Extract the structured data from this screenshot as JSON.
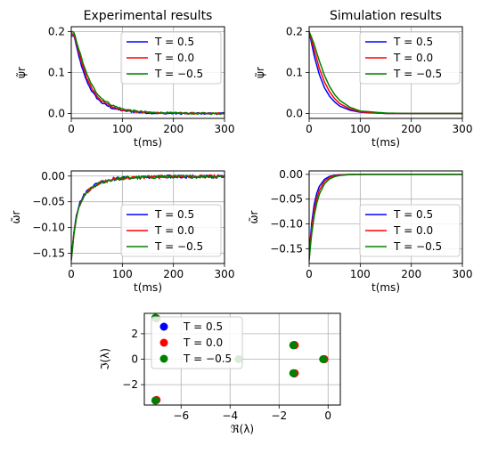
{
  "chart_data": [
    {
      "type": "line",
      "panel": "exp-psi",
      "title": "Experimental results",
      "xlabel": "t(ms)",
      "ylabel": "ψ̃r",
      "xlim": [
        0,
        300
      ],
      "ylim": [
        -0.012,
        0.212
      ],
      "xticks": [
        "0",
        "100",
        "200",
        "300"
      ],
      "yticks": [
        "0.0",
        "0.1",
        "0.2"
      ],
      "xtick_values": [
        0,
        100,
        200,
        300
      ],
      "ytick_values": [
        0.0,
        0.1,
        0.2
      ],
      "grid": true,
      "legend_position": "top-right",
      "series": [
        {
          "name": "T = 0.5",
          "color": "#0000ff",
          "noise": 0.002,
          "x": [
            0,
            5,
            10,
            20,
            30,
            40,
            50,
            60,
            80,
            100,
            130,
            160,
            200,
            250,
            300
          ],
          "y": [
            0.19,
            0.19,
            0.165,
            0.115,
            0.08,
            0.055,
            0.038,
            0.026,
            0.013,
            0.007,
            0.003,
            0.001,
            0.0,
            0.0,
            0.0
          ]
        },
        {
          "name": "T = 0.0",
          "color": "#ff0000",
          "noise": 0.002,
          "x": [
            0,
            5,
            10,
            20,
            30,
            40,
            50,
            60,
            80,
            100,
            130,
            160,
            200,
            250,
            300
          ],
          "y": [
            0.195,
            0.195,
            0.172,
            0.125,
            0.088,
            0.062,
            0.043,
            0.03,
            0.016,
            0.009,
            0.004,
            0.002,
            0.001,
            0.0,
            0.0
          ]
        },
        {
          "name": "T = −0.5",
          "color": "#008000",
          "noise": 0.002,
          "x": [
            0,
            5,
            10,
            20,
            30,
            40,
            50,
            60,
            80,
            100,
            130,
            160,
            200,
            250,
            300
          ],
          "y": [
            0.198,
            0.198,
            0.178,
            0.135,
            0.097,
            0.07,
            0.05,
            0.036,
            0.02,
            0.011,
            0.005,
            0.002,
            0.001,
            0.0,
            0.0
          ]
        }
      ]
    },
    {
      "type": "line",
      "panel": "sim-psi",
      "title": "Simulation results",
      "xlabel": "t(ms)",
      "ylabel": "ψ̃r",
      "xlim": [
        0,
        300
      ],
      "ylim": [
        -0.012,
        0.212
      ],
      "xticks": [
        "0",
        "100",
        "200",
        "300"
      ],
      "yticks": [
        "0.0",
        "0.1",
        "0.2"
      ],
      "xtick_values": [
        0,
        100,
        200,
        300
      ],
      "ytick_values": [
        0.0,
        0.1,
        0.2
      ],
      "grid": true,
      "legend_position": "top-right",
      "series": [
        {
          "name": "T = 0.5",
          "color": "#0000ff",
          "noise": 0,
          "x": [
            0,
            5,
            10,
            20,
            30,
            40,
            50,
            60,
            80,
            100,
            150,
            200,
            300
          ],
          "y": [
            0.2,
            0.17,
            0.14,
            0.095,
            0.063,
            0.042,
            0.028,
            0.018,
            0.008,
            0.003,
            0.0,
            0.0,
            0.0
          ]
        },
        {
          "name": "T = 0.0",
          "color": "#ff0000",
          "noise": 0,
          "x": [
            0,
            5,
            10,
            20,
            30,
            40,
            50,
            60,
            80,
            100,
            150,
            200,
            300
          ],
          "y": [
            0.2,
            0.178,
            0.155,
            0.11,
            0.077,
            0.053,
            0.036,
            0.024,
            0.011,
            0.004,
            0.0,
            0.0,
            0.0
          ]
        },
        {
          "name": "T = −0.5",
          "color": "#008000",
          "noise": 0,
          "x": [
            0,
            5,
            10,
            20,
            30,
            40,
            50,
            60,
            80,
            100,
            150,
            200,
            300
          ],
          "y": [
            0.2,
            0.185,
            0.168,
            0.128,
            0.093,
            0.066,
            0.046,
            0.032,
            0.015,
            0.006,
            0.001,
            0.0,
            0.0
          ]
        }
      ]
    },
    {
      "type": "line",
      "panel": "exp-omega",
      "title": "",
      "xlabel": "t(ms)",
      "ylabel": "ω̃r",
      "xlim": [
        0,
        300
      ],
      "ylim": [
        -0.17,
        0.01
      ],
      "xticks": [
        "0",
        "100",
        "200",
        "300"
      ],
      "yticks": [
        "0.00",
        "−0.05",
        "−0.10",
        "−0.15"
      ],
      "xtick_values": [
        0,
        100,
        200,
        300
      ],
      "ytick_values": [
        0.0,
        -0.05,
        -0.1,
        -0.15
      ],
      "grid": true,
      "legend_position": "lower-right",
      "series": [
        {
          "name": "T = 0.5",
          "color": "#0000ff",
          "noise": 0.003,
          "x": [
            0,
            3,
            6,
            10,
            15,
            20,
            30,
            40,
            50,
            60,
            80,
            100,
            150,
            200,
            250,
            300
          ],
          "y": [
            -0.16,
            -0.13,
            -0.1,
            -0.075,
            -0.057,
            -0.045,
            -0.03,
            -0.021,
            -0.015,
            -0.011,
            -0.006,
            -0.004,
            -0.002,
            -0.001,
            -0.001,
            -0.001
          ]
        },
        {
          "name": "T = 0.0",
          "color": "#ff0000",
          "noise": 0.003,
          "x": [
            0,
            3,
            6,
            10,
            15,
            20,
            30,
            40,
            50,
            60,
            80,
            100,
            150,
            200,
            250,
            300
          ],
          "y": [
            -0.162,
            -0.133,
            -0.103,
            -0.078,
            -0.06,
            -0.047,
            -0.032,
            -0.022,
            -0.016,
            -0.012,
            -0.007,
            -0.004,
            -0.002,
            -0.001,
            -0.001,
            -0.001
          ]
        },
        {
          "name": "T = −0.5",
          "color": "#008000",
          "noise": 0.003,
          "x": [
            0,
            3,
            6,
            10,
            15,
            20,
            30,
            40,
            50,
            60,
            80,
            100,
            150,
            200,
            250,
            300
          ],
          "y": [
            -0.165,
            -0.136,
            -0.106,
            -0.081,
            -0.062,
            -0.049,
            -0.033,
            -0.023,
            -0.017,
            -0.012,
            -0.007,
            -0.004,
            -0.002,
            -0.001,
            -0.001,
            -0.001
          ]
        }
      ]
    },
    {
      "type": "line",
      "panel": "sim-omega",
      "title": "",
      "xlabel": "t(ms)",
      "ylabel": "ω̃r",
      "xlim": [
        0,
        300
      ],
      "ylim": [
        -0.18,
        0.007
      ],
      "xticks": [
        "0",
        "100",
        "200",
        "300"
      ],
      "yticks": [
        "0.00",
        "−0.05",
        "−0.10",
        "−0.15"
      ],
      "xtick_values": [
        0,
        100,
        200,
        300
      ],
      "ytick_values": [
        0.0,
        -0.05,
        -0.1,
        -0.15
      ],
      "grid": true,
      "legend_position": "lower-right",
      "series": [
        {
          "name": "T = 0.5",
          "color": "#0000ff",
          "noise": 0,
          "x": [
            0,
            2,
            5,
            10,
            15,
            20,
            30,
            40,
            50,
            60,
            80,
            100,
            150,
            300
          ],
          "y": [
            -0.17,
            -0.135,
            -0.098,
            -0.06,
            -0.038,
            -0.024,
            -0.01,
            -0.004,
            -0.0017,
            -0.0007,
            -0.0001,
            0.0,
            0.0,
            0.0
          ]
        },
        {
          "name": "T = 0.0",
          "color": "#ff0000",
          "noise": 0,
          "x": [
            0,
            2,
            5,
            10,
            15,
            20,
            30,
            40,
            50,
            60,
            80,
            100,
            150,
            300
          ],
          "y": [
            -0.172,
            -0.143,
            -0.11,
            -0.072,
            -0.048,
            -0.032,
            -0.014,
            -0.006,
            -0.0027,
            -0.0012,
            -0.0002,
            0.0,
            0.0,
            0.0
          ]
        },
        {
          "name": "T = −0.5",
          "color": "#008000",
          "noise": 0,
          "x": [
            0,
            2,
            5,
            10,
            15,
            20,
            30,
            40,
            50,
            60,
            80,
            100,
            150,
            300
          ],
          "y": [
            -0.174,
            -0.15,
            -0.12,
            -0.083,
            -0.058,
            -0.04,
            -0.019,
            -0.009,
            -0.0045,
            -0.0022,
            -0.0005,
            -0.0001,
            0.0,
            0.0
          ]
        }
      ]
    },
    {
      "type": "scatter",
      "panel": "eigen",
      "title": "",
      "xlabel": "ℜ(λ)",
      "ylabel": "ℑ(λ)",
      "xlim": [
        -7.5,
        0.5
      ],
      "ylim": [
        -3.6,
        3.6
      ],
      "xticks": [
        "−6",
        "−4",
        "−2",
        "0"
      ],
      "yticks": [
        "2",
        "0",
        "−2"
      ],
      "xtick_values": [
        -6,
        -4,
        -2,
        0
      ],
      "ytick_values": [
        2,
        0,
        -2
      ],
      "grid": true,
      "legend_position": "upper-left",
      "series": [
        {
          "name": "T = 0.5",
          "color": "#0000ff",
          "points": [
            [
              -7.02,
              3.22
            ],
            [
              -7.02,
              -3.22
            ],
            [
              -1.38,
              1.12
            ],
            [
              -1.38,
              -1.12
            ],
            [
              -0.16,
              0.0
            ]
          ]
        },
        {
          "name": "T = 0.0",
          "color": "#ff0000",
          "points": [
            [
              -7.0,
              3.2
            ],
            [
              -7.0,
              -3.2
            ],
            [
              -1.36,
              1.1
            ],
            [
              -1.36,
              -1.1
            ],
            [
              -0.15,
              0.0
            ]
          ]
        },
        {
          "name": "T = −0.5",
          "color": "#008000",
          "points": [
            [
              -7.05,
              3.25
            ],
            [
              -7.05,
              -3.25
            ],
            [
              -1.42,
              1.1
            ],
            [
              -1.42,
              -1.1
            ],
            [
              -0.2,
              0.0
            ],
            [
              -3.65,
              0.0
            ]
          ]
        }
      ]
    }
  ]
}
